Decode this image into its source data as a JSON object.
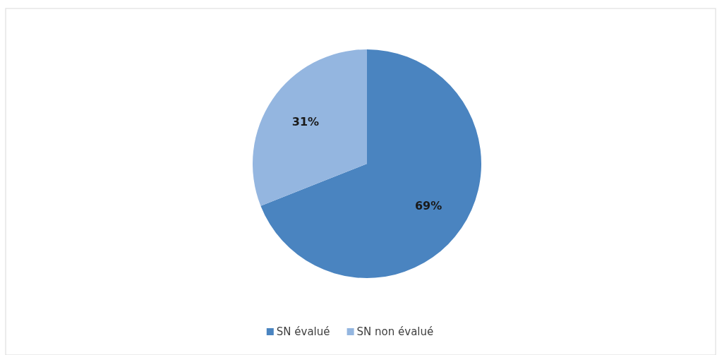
{
  "chart_data": {
    "type": "pie",
    "categories": [
      "SN évalué",
      "SN non évalué"
    ],
    "values": [
      69,
      31
    ],
    "colors": [
      "#4a84c0",
      "#94b6e0"
    ],
    "value_labels": [
      "69%",
      "31%"
    ],
    "legend": "bottom"
  }
}
